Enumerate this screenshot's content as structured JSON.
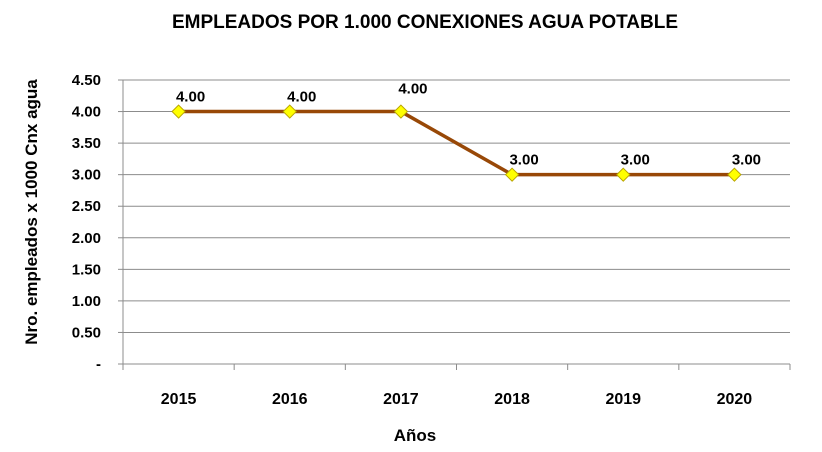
{
  "chart_data": {
    "type": "line",
    "title": "EMPLEADOS POR 1.000 CONEXIONES AGUA POTABLE",
    "xlabel": "Años",
    "ylabel": "Nro. empleados x 1000 Cnx agua",
    "categories": [
      "2015",
      "2016",
      "2017",
      "2018",
      "2019",
      "2020"
    ],
    "series": [
      {
        "values": [
          4.0,
          4.0,
          4.0,
          3.0,
          3.0,
          3.0
        ]
      }
    ],
    "data_labels": [
      "4.00",
      "4.00",
      "4.00",
      "3.00",
      "3.00",
      "3.00"
    ],
    "yticks": [
      "-",
      "0.50",
      "1.00",
      "1.50",
      "2.00",
      "2.50",
      "3.00",
      "3.50",
      "4.00",
      "4.50"
    ],
    "ylim": [
      0,
      4.5
    ],
    "grid": true,
    "legend": "none",
    "colors": {
      "line": "#984807",
      "marker_fill": "#ffff00",
      "marker_stroke": "#b8a400",
      "grid": "#8c8c8c",
      "axis": "#8c8c8c"
    }
  }
}
